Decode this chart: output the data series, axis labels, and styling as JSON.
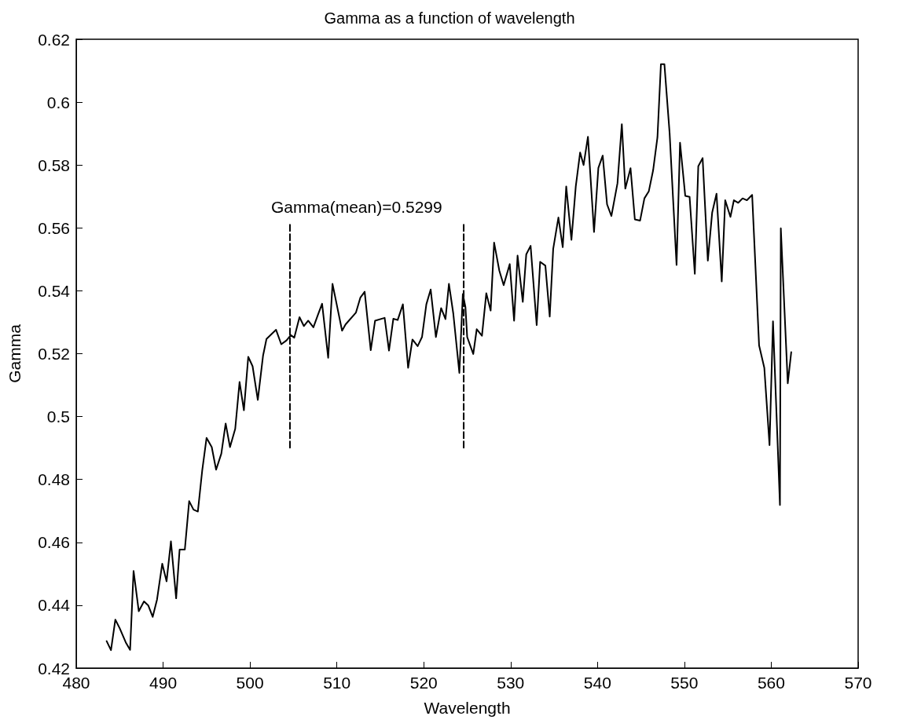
{
  "chart_data": {
    "type": "line",
    "title": "Gamma as a function of wavelength",
    "xlabel": "Wavelength",
    "ylabel": "Gamma",
    "xlim": [
      480,
      570
    ],
    "xticks": [
      480,
      490,
      500,
      510,
      520,
      530,
      540,
      550,
      560,
      570
    ],
    "ylim": [
      0.42,
      0.62
    ],
    "yticks": [
      0.42,
      0.44,
      0.46,
      0.48,
      0.5,
      0.52,
      0.54,
      0.56,
      0.58,
      0.6,
      0.62
    ],
    "grid": false,
    "marker": "none",
    "annotations": [
      "Gamma(mean)=0.5299"
    ],
    "series": [
      {
        "color": "#000000",
        "line_style": "solid",
        "x": [
          483.5,
          484.0,
          484.5,
          485.0,
          485.7,
          486.2,
          486.6,
          487.2,
          487.8,
          488.3,
          488.8,
          489.3,
          489.9,
          490.4,
          490.9,
          491.5,
          491.9,
          492.5,
          493.0,
          493.5,
          494.0,
          494.5,
          495.0,
          495.6,
          496.1,
          496.7,
          497.2,
          497.7,
          498.3,
          498.8,
          499.3,
          499.8,
          500.3,
          500.9,
          501.5,
          501.9,
          503.0,
          503.6,
          504.2,
          504.7,
          505.1,
          505.7,
          506.2,
          506.7,
          507.3,
          507.8,
          508.3,
          509.0,
          509.5,
          510.6,
          511.0,
          512.2,
          512.7,
          513.2,
          513.9,
          514.4,
          515.5,
          516.0,
          516.5,
          517.0,
          517.6,
          518.2,
          518.7,
          519.3,
          519.8,
          520.3,
          520.8,
          521.4,
          522.0,
          522.5,
          522.9,
          523.4,
          524.1,
          524.5,
          524.8,
          525.0,
          525.7,
          526.1,
          526.7,
          527.2,
          527.7,
          528.1,
          528.7,
          529.2,
          529.9,
          530.4,
          530.8,
          531.4,
          531.8,
          532.3,
          533.0,
          533.4,
          534.0,
          534.5,
          534.9,
          535.5,
          536.0,
          536.4,
          537.0,
          537.5,
          538.0,
          538.4,
          538.9,
          539.6,
          540.1,
          540.6,
          541.1,
          541.6,
          542.3,
          542.8,
          543.2,
          543.8,
          544.3,
          544.9,
          545.4,
          545.9,
          546.4,
          546.9,
          547.3,
          547.7,
          548.3,
          549.1,
          549.5,
          550.1,
          550.6,
          551.2,
          551.6,
          552.1,
          552.7,
          553.2,
          553.7,
          554.3,
          554.7,
          555.3,
          555.7,
          556.2,
          556.7,
          557.2,
          557.8,
          558.6,
          559.2,
          559.8,
          560.2,
          561.0,
          561.1,
          561.9,
          562.3
        ],
        "values": [
          0.4286,
          0.4257,
          0.4354,
          0.4327,
          0.4282,
          0.4258,
          0.4509,
          0.4381,
          0.4412,
          0.4399,
          0.4363,
          0.4418,
          0.4532,
          0.4476,
          0.4603,
          0.4422,
          0.4577,
          0.4577,
          0.4731,
          0.4704,
          0.4698,
          0.4828,
          0.4932,
          0.4903,
          0.4831,
          0.4882,
          0.4978,
          0.4903,
          0.4961,
          0.511,
          0.502,
          0.519,
          0.516,
          0.5053,
          0.5193,
          0.5247,
          0.5276,
          0.523,
          0.5242,
          0.5259,
          0.5251,
          0.5316,
          0.5288,
          0.5305,
          0.5284,
          0.5322,
          0.5359,
          0.5187,
          0.5422,
          0.5273,
          0.5293,
          0.5331,
          0.5378,
          0.5397,
          0.5211,
          0.5305,
          0.5314,
          0.521,
          0.5311,
          0.5307,
          0.5357,
          0.5155,
          0.5245,
          0.5224,
          0.5253,
          0.5357,
          0.5404,
          0.5253,
          0.5345,
          0.531,
          0.5422,
          0.5328,
          0.5139,
          0.539,
          0.5348,
          0.5253,
          0.5199,
          0.5278,
          0.5257,
          0.5392,
          0.5337,
          0.5553,
          0.5464,
          0.5418,
          0.5485,
          0.5305,
          0.5512,
          0.5365,
          0.5516,
          0.5543,
          0.5291,
          0.5492,
          0.548,
          0.5318,
          0.5533,
          0.5633,
          0.5539,
          0.5732,
          0.5562,
          0.5732,
          0.584,
          0.58,
          0.589,
          0.5587,
          0.5791,
          0.583,
          0.5675,
          0.5638,
          0.5742,
          0.593,
          0.5725,
          0.579,
          0.5627,
          0.5623,
          0.5694,
          0.5716,
          0.5783,
          0.5888,
          0.6121,
          0.6121,
          0.5902,
          0.5482,
          0.5871,
          0.5702,
          0.5699,
          0.5454,
          0.5796,
          0.5822,
          0.5496,
          0.5649,
          0.5709,
          0.543,
          0.5688,
          0.5635,
          0.5688,
          0.568,
          0.5694,
          0.5688,
          0.5705,
          0.5226,
          0.5155,
          0.4909,
          0.5303,
          0.4719,
          0.5599,
          0.5106,
          0.5205
        ]
      },
      {
        "color": "#000000",
        "line_style": "dashed",
        "x": [
          504.6,
          504.6
        ],
        "values": [
          0.561,
          0.49
        ]
      },
      {
        "color": "#000000",
        "line_style": "dashed",
        "x": [
          524.6,
          524.6
        ],
        "values": [
          0.561,
          0.49
        ]
      }
    ]
  }
}
